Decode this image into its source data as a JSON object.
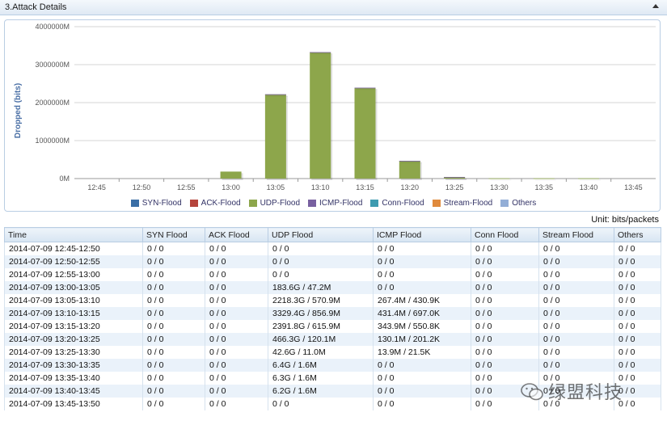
{
  "panel": {
    "title": "3.Attack Details"
  },
  "chart_data": {
    "type": "bar",
    "ylabel": "Dropped (bits)",
    "xlabel": "",
    "categories": [
      "12:45",
      "12:50",
      "12:55",
      "13:00",
      "13:05",
      "13:10",
      "13:15",
      "13:20",
      "13:25",
      "13:30",
      "13:35",
      "13:40",
      "13:45"
    ],
    "yticks": [
      "0M",
      "1000000M",
      "2000000M",
      "3000000M",
      "4000000M"
    ],
    "ylim": [
      0,
      4000000
    ],
    "grid": true,
    "legend_position": "bottom",
    "series": [
      {
        "name": "SYN-Flood",
        "color": "#3a6ea5",
        "values": [
          0,
          0,
          0,
          0,
          0,
          0,
          0,
          0,
          0,
          0,
          0,
          0,
          0
        ]
      },
      {
        "name": "ACK-Flood",
        "color": "#b5443c",
        "values": [
          0,
          0,
          0,
          0,
          0,
          0,
          0,
          0,
          0,
          0,
          0,
          0,
          0
        ]
      },
      {
        "name": "UDP-Flood",
        "color": "#8da64b",
        "values": [
          0,
          0,
          0,
          183600,
          2218300,
          3329400,
          2391800,
          466300,
          42600,
          6400,
          6300,
          6200,
          0
        ]
      },
      {
        "name": "ICMP-Flood",
        "color": "#7860a0",
        "values": [
          0,
          0,
          0,
          0,
          267.4,
          431.4,
          343.9,
          130.1,
          13.9,
          0,
          0,
          0,
          0
        ]
      },
      {
        "name": "Conn-Flood",
        "color": "#3e9bb0",
        "values": [
          0,
          0,
          0,
          0,
          0,
          0,
          0,
          0,
          0,
          0,
          0,
          0,
          0
        ]
      },
      {
        "name": "Stream-Flood",
        "color": "#e08a3c",
        "values": [
          0,
          0,
          0,
          0,
          0,
          0,
          0,
          0,
          0,
          0,
          0,
          0,
          0
        ]
      },
      {
        "name": "Others",
        "color": "#93aed6",
        "values": [
          0,
          0,
          0,
          0,
          0,
          0,
          0,
          0,
          0,
          0,
          0,
          0,
          0
        ]
      }
    ]
  },
  "unit_label": "Unit: bits/packets",
  "table": {
    "columns": [
      "Time",
      "SYN Flood",
      "ACK Flood",
      "UDP Flood",
      "ICMP Flood",
      "Conn Flood",
      "Stream Flood",
      "Others"
    ],
    "rows": [
      [
        "2014-07-09 12:45-12:50",
        "0 / 0",
        "0 / 0",
        "0 / 0",
        "0 / 0",
        "0 / 0",
        "0 / 0",
        "0 / 0"
      ],
      [
        "2014-07-09 12:50-12:55",
        "0 / 0",
        "0 / 0",
        "0 / 0",
        "0 / 0",
        "0 / 0",
        "0 / 0",
        "0 / 0"
      ],
      [
        "2014-07-09 12:55-13:00",
        "0 / 0",
        "0 / 0",
        "0 / 0",
        "0 / 0",
        "0 / 0",
        "0 / 0",
        "0 / 0"
      ],
      [
        "2014-07-09 13:00-13:05",
        "0 / 0",
        "0 / 0",
        "183.6G / 47.2M",
        "0 / 0",
        "0 / 0",
        "0 / 0",
        "0 / 0"
      ],
      [
        "2014-07-09 13:05-13:10",
        "0 / 0",
        "0 / 0",
        "2218.3G / 570.9M",
        "267.4M / 430.9K",
        "0 / 0",
        "0 / 0",
        "0 / 0"
      ],
      [
        "2014-07-09 13:10-13:15",
        "0 / 0",
        "0 / 0",
        "3329.4G / 856.9M",
        "431.4M / 697.0K",
        "0 / 0",
        "0 / 0",
        "0 / 0"
      ],
      [
        "2014-07-09 13:15-13:20",
        "0 / 0",
        "0 / 0",
        "2391.8G / 615.9M",
        "343.9M / 550.8K",
        "0 / 0",
        "0 / 0",
        "0 / 0"
      ],
      [
        "2014-07-09 13:20-13:25",
        "0 / 0",
        "0 / 0",
        "466.3G / 120.1M",
        "130.1M / 201.2K",
        "0 / 0",
        "0 / 0",
        "0 / 0"
      ],
      [
        "2014-07-09 13:25-13:30",
        "0 / 0",
        "0 / 0",
        "42.6G / 11.0M",
        "13.9M / 21.5K",
        "0 / 0",
        "0 / 0",
        "0 / 0"
      ],
      [
        "2014-07-09 13:30-13:35",
        "0 / 0",
        "0 / 0",
        "6.4G / 1.6M",
        "0 / 0",
        "0 / 0",
        "0 / 0",
        "0 / 0"
      ],
      [
        "2014-07-09 13:35-13:40",
        "0 / 0",
        "0 / 0",
        "6.3G / 1.6M",
        "0 / 0",
        "0 / 0",
        "0 / 0",
        "0 / 0"
      ],
      [
        "2014-07-09 13:40-13:45",
        "0 / 0",
        "0 / 0",
        "6.2G / 1.6M",
        "0 / 0",
        "0 / 0",
        "0 / 0",
        "0 / 0"
      ],
      [
        "2014-07-09 13:45-13:50",
        "0 / 0",
        "0 / 0",
        "0 / 0",
        "0 / 0",
        "0 / 0",
        "0 / 0",
        "0 / 0"
      ]
    ]
  },
  "watermark": {
    "text": "绿盟科技",
    "icon": "wechat-icon"
  }
}
